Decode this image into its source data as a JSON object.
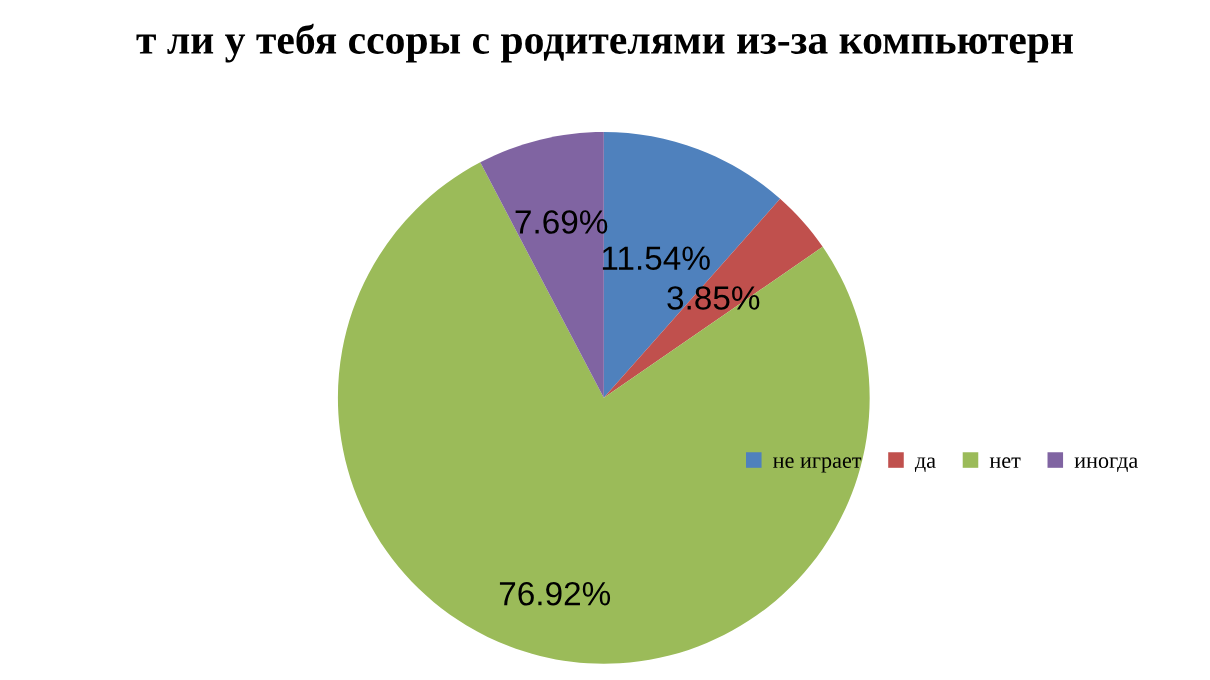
{
  "chart_data": {
    "type": "pie",
    "title": "т ли у тебя ссоры с родителями из-за компьютерн",
    "categories": [
      "не играет",
      "да",
      "нет",
      "иногда"
    ],
    "values": [
      11.54,
      3.85,
      76.92,
      7.69
    ],
    "colors": [
      "#4f81bd",
      "#c0504d",
      "#9bbb59",
      "#8064a2"
    ],
    "value_labels": [
      "11.54%",
      "3.85%",
      "76.92%",
      "7.69%"
    ],
    "legend": "right"
  }
}
